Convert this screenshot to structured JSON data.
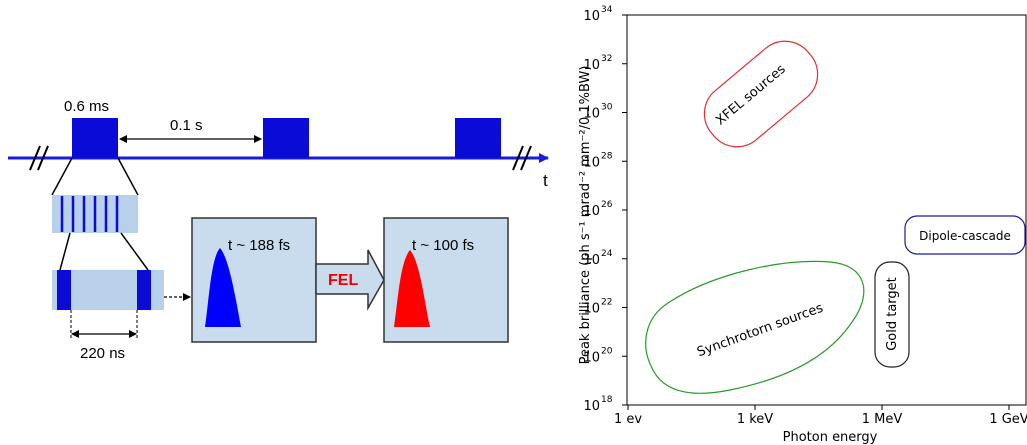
{
  "timing_diagram": {
    "macro_pulse_length": "0.6 ms",
    "repetition_period": "0.1 s",
    "time_axis_label": "t",
    "bunch_spacing": "220 ns",
    "input_bunch_length": "t ~ 188 fs",
    "process_label": "FEL",
    "output_bunch_length": "t ~ 100 fs",
    "colors": {
      "pulse_blue": "#0b0bd8",
      "box_fill": "#c9dcee",
      "macro_fill": "#b8d0ea",
      "input_pulse": "#0000ff",
      "output_pulse": "#ff0000",
      "fel_text": "#ee0000"
    }
  },
  "brilliance_plot": {
    "ylabel": "Peak brilliance (ph s⁻¹ mrad⁻² mm⁻²/0.1%BW)",
    "xlabel": "Photon energy",
    "x_ticks": [
      "1 ev",
      "1 keV",
      "1 MeV",
      "1 GeV"
    ],
    "y_ticks": [
      {
        "base": "10",
        "exp": "18"
      },
      {
        "base": "10",
        "exp": "20"
      },
      {
        "base": "10",
        "exp": "22"
      },
      {
        "base": "10",
        "exp": "24"
      },
      {
        "base": "10",
        "exp": "26"
      },
      {
        "base": "10",
        "exp": "28"
      },
      {
        "base": "10",
        "exp": "30"
      },
      {
        "base": "10",
        "exp": "32"
      },
      {
        "base": "10",
        "exp": "34"
      }
    ],
    "regions": [
      {
        "name": "XFEL sources",
        "color": "#e03030"
      },
      {
        "name": "Synchrotorn sources",
        "color": "#2a9a2a"
      },
      {
        "name": "Gold target",
        "color": "#222222"
      },
      {
        "name": "Dipole-cascade",
        "color": "#1a1aa0"
      }
    ]
  }
}
